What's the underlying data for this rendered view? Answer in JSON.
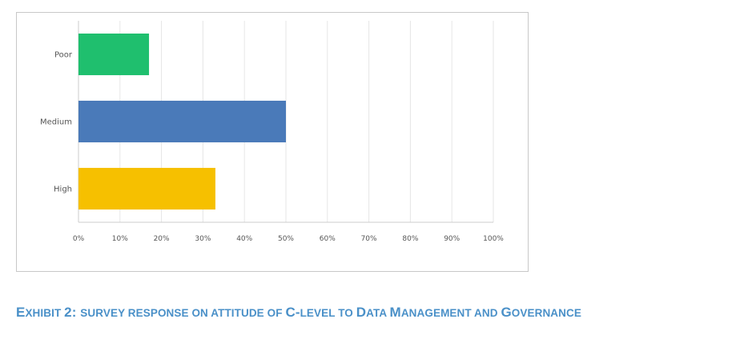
{
  "chart_data": {
    "type": "bar",
    "orientation": "horizontal",
    "categories": [
      "Poor",
      "Medium",
      "High"
    ],
    "values": [
      17,
      50,
      33
    ],
    "colors": [
      "#1fbf6e",
      "#4a7ab9",
      "#f6c000"
    ],
    "xlim": [
      0,
      100
    ],
    "xticks": [
      "0%",
      "10%",
      "20%",
      "30%",
      "40%",
      "50%",
      "60%",
      "70%",
      "80%",
      "90%",
      "100%"
    ],
    "grid": true,
    "title": "",
    "xlabel": "",
    "ylabel": ""
  },
  "caption": {
    "segments": [
      {
        "text": "E",
        "size": "big"
      },
      {
        "text": "XHIBIT ",
        "size": "small"
      },
      {
        "text": "2: ",
        "size": "big"
      },
      {
        "text": "SURVEY RESPONSE ON ATTITUDE OF ",
        "size": "small"
      },
      {
        "text": "C-",
        "size": "big"
      },
      {
        "text": "LEVEL TO ",
        "size": "small"
      },
      {
        "text": "D",
        "size": "big"
      },
      {
        "text": "ATA ",
        "size": "small"
      },
      {
        "text": "M",
        "size": "big"
      },
      {
        "text": "ANAGEMENT AND ",
        "size": "small"
      },
      {
        "text": "G",
        "size": "big"
      },
      {
        "text": "OVERNANCE",
        "size": "small"
      }
    ]
  }
}
